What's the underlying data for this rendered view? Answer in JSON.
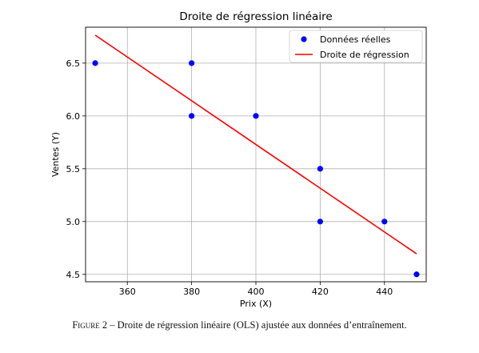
{
  "chart_data": {
    "type": "scatter",
    "title": "Droite de régression linéaire",
    "xlabel": "Prix (X)",
    "ylabel": "Ventes (Y)",
    "xlim": [
      347,
      453
    ],
    "ylim": [
      4.43,
      6.84
    ],
    "xticks": [
      360,
      380,
      400,
      420,
      440
    ],
    "yticks": [
      4.5,
      5.0,
      5.5,
      6.0,
      6.5
    ],
    "xtick_labels": [
      "360",
      "380",
      "400",
      "420",
      "440"
    ],
    "ytick_labels": [
      "4.5",
      "5.0",
      "5.5",
      "6.0",
      "6.5"
    ],
    "grid": true,
    "legend_position": "top-right",
    "series": [
      {
        "name": "Données réelles",
        "kind": "scatter",
        "color": "#0000ff",
        "x": [
          350,
          380,
          380,
          400,
          420,
          420,
          440,
          450
        ],
        "y": [
          6.5,
          6.5,
          6.0,
          6.0,
          5.5,
          5.0,
          5.0,
          4.5
        ]
      },
      {
        "name": "Droite de régression",
        "kind": "line",
        "color": "#ff0000",
        "x": [
          350,
          450
        ],
        "y": [
          6.765,
          4.695
        ]
      }
    ]
  },
  "caption": {
    "label": "Figure 2",
    "text": " – Droite de régression linéaire (OLS) ajustée aux données d’entraînement."
  }
}
